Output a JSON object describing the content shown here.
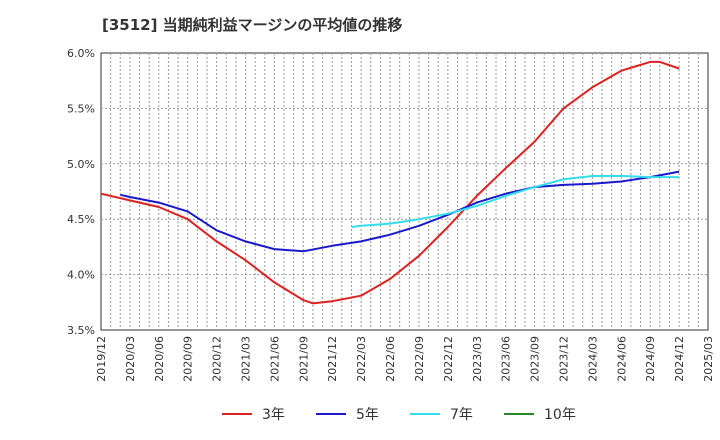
{
  "chart_data": {
    "type": "line",
    "title": "[3512]  当期純利益マージンの平均値の推移",
    "xlabel": "",
    "ylabel": "",
    "ylim": [
      3.5,
      6.0
    ],
    "y_ticks": [
      "3.5%",
      "4.0%",
      "4.5%",
      "5.0%",
      "5.5%",
      "6.0%"
    ],
    "x_ticks": [
      "2019/12",
      "2020/03",
      "2020/06",
      "2020/09",
      "2020/12",
      "2021/03",
      "2021/06",
      "2021/09",
      "2021/12",
      "2022/03",
      "2022/06",
      "2022/09",
      "2022/12",
      "2023/03",
      "2023/06",
      "2023/09",
      "2023/12",
      "2024/03",
      "2024/06",
      "2024/09",
      "2024/12",
      "2025/03"
    ],
    "grid": true,
    "legend_position": "bottom",
    "series": [
      {
        "name": "3年",
        "color": "#dd2222",
        "x": [
          "2019/12",
          "2020/03",
          "2020/06",
          "2020/09",
          "2020/12",
          "2021/03",
          "2021/06",
          "2021/09",
          "2021/10",
          "2021/12",
          "2022/03",
          "2022/06",
          "2022/09",
          "2022/12",
          "2023/03",
          "2023/06",
          "2023/09",
          "2023/12",
          "2024/03",
          "2024/06",
          "2024/09",
          "2024/10",
          "2024/12"
        ],
        "values": [
          4.73,
          4.67,
          4.61,
          4.5,
          4.3,
          4.13,
          3.93,
          3.77,
          3.74,
          3.76,
          3.81,
          3.96,
          4.17,
          4.43,
          4.71,
          4.96,
          5.2,
          5.5,
          5.69,
          5.84,
          5.92,
          5.92,
          5.86
        ]
      },
      {
        "name": "5年",
        "color": "#1a1acc",
        "x": [
          "2020/02",
          "2020/03",
          "2020/06",
          "2020/09",
          "2020/12",
          "2021/03",
          "2021/06",
          "2021/09",
          "2021/12",
          "2022/03",
          "2022/06",
          "2022/09",
          "2022/12",
          "2023/03",
          "2023/06",
          "2023/09",
          "2023/12",
          "2024/03",
          "2024/06",
          "2024/09",
          "2024/12"
        ],
        "values": [
          4.72,
          4.7,
          4.65,
          4.57,
          4.4,
          4.3,
          4.23,
          4.21,
          4.26,
          4.3,
          4.36,
          4.44,
          4.54,
          4.65,
          4.73,
          4.79,
          4.81,
          4.82,
          4.84,
          4.88,
          4.93
        ]
      },
      {
        "name": "7年",
        "color": "#33ddee",
        "x": [
          "2022/02",
          "2022/03",
          "2022/06",
          "2022/09",
          "2022/12",
          "2023/03",
          "2023/06",
          "2023/09",
          "2023/12",
          "2024/03",
          "2024/06",
          "2024/09",
          "2024/12"
        ],
        "values": [
          4.43,
          4.44,
          4.46,
          4.5,
          4.55,
          4.62,
          4.71,
          4.79,
          4.86,
          4.89,
          4.89,
          4.88,
          4.88
        ]
      },
      {
        "name": "10年",
        "color": "#2a8a2a",
        "x": [],
        "values": []
      }
    ]
  }
}
